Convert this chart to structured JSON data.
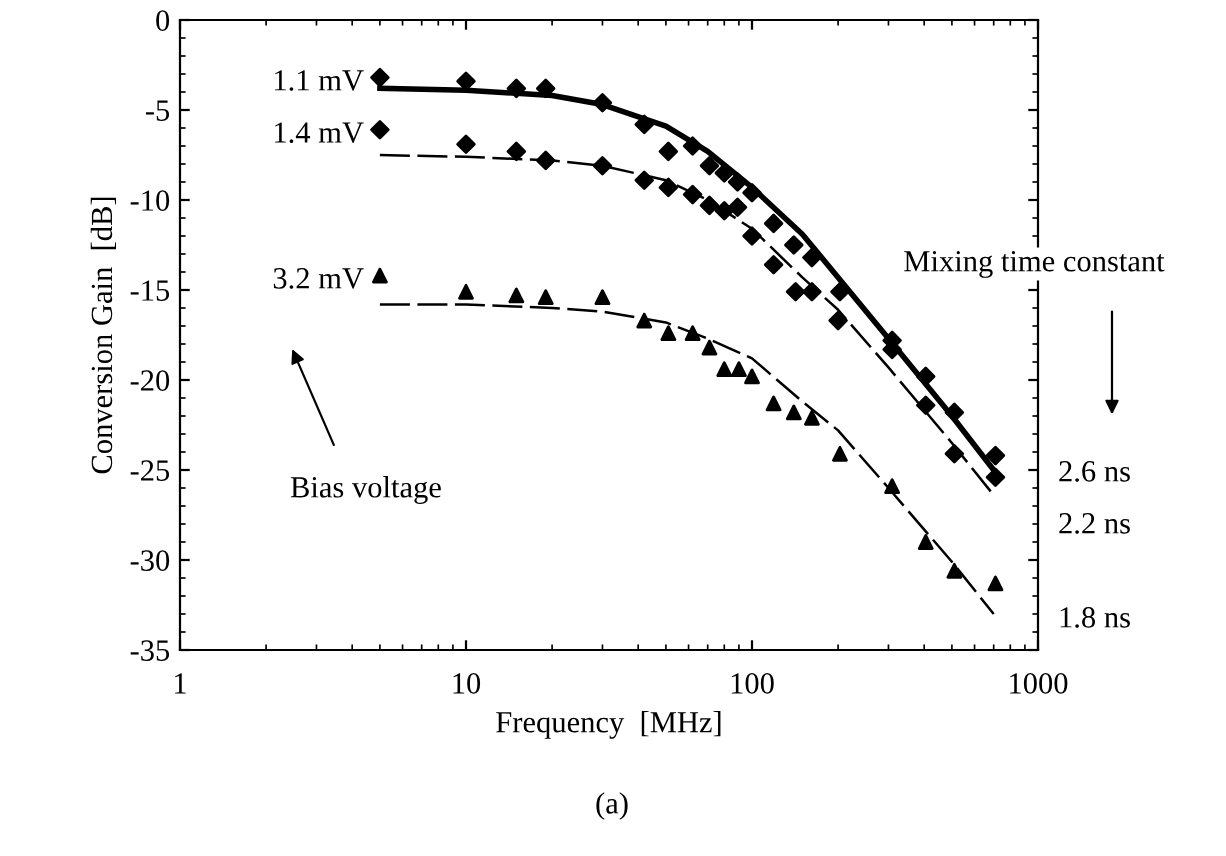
{
  "chart_data": {
    "type": "scatter",
    "xlabel": "Frequency  [MHz]",
    "ylabel": "Conversion Gain  [dB]",
    "log": "x",
    "xlim": [
      1,
      1000
    ],
    "xticks": [
      1,
      10,
      100,
      1000
    ],
    "ylim": [
      -35,
      0
    ],
    "yticks": [
      -35,
      -30,
      -25,
      -20,
      -15,
      -10,
      -5,
      0
    ],
    "grid": false,
    "legend": false,
    "series": [
      {
        "name": "1.1 mV",
        "marker": "diamond",
        "color": "#000000",
        "x": [
          5,
          10,
          15,
          19,
          30,
          42,
          51,
          62,
          71,
          80,
          89,
          100,
          119,
          140,
          162,
          203,
          309,
          405,
          510,
          710
        ],
        "values": [
          -3.2,
          -3.4,
          -3.8,
          -3.8,
          -4.6,
          -5.8,
          -7.3,
          -7.0,
          -8.1,
          -8.5,
          -9.0,
          -9.6,
          -11.3,
          -12.5,
          -13.2,
          -15.1,
          -17.8,
          -19.8,
          -21.8,
          -24.2
        ]
      },
      {
        "name": "1.4 mV",
        "marker": "diamond",
        "color": "#000000",
        "x": [
          5,
          10,
          15,
          19,
          30,
          42,
          51,
          62,
          71,
          80,
          89,
          100,
          119,
          142,
          162,
          200,
          309,
          405,
          510,
          710
        ],
        "values": [
          -6.1,
          -6.9,
          -7.3,
          -7.8,
          -8.1,
          -8.9,
          -9.3,
          -9.7,
          -10.3,
          -10.6,
          -10.4,
          -12.0,
          -13.6,
          -15.1,
          -15.1,
          -16.7,
          -18.3,
          -21.4,
          -24.1,
          -25.4
        ]
      },
      {
        "name": "3.2 mV",
        "marker": "triangle",
        "color": "#000000",
        "x": [
          5,
          10,
          15,
          19,
          30,
          42,
          51,
          62,
          71,
          80,
          90,
          100,
          119,
          140,
          162,
          203,
          309,
          405,
          510,
          710
        ],
        "values": [
          -14.2,
          -15.1,
          -15.3,
          -15.4,
          -15.4,
          -16.7,
          -17.4,
          -17.4,
          -18.2,
          -19.4,
          -19.4,
          -19.8,
          -21.3,
          -21.8,
          -22.1,
          -24.1,
          -25.9,
          -29.0,
          -30.6,
          -31.3
        ]
      },
      {
        "type": "line",
        "line_style": "solid",
        "color": "#000000",
        "x": [
          5,
          10,
          20,
          30,
          50,
          70,
          100,
          150,
          200,
          300,
          500,
          700
        ],
        "values": [
          -3.8,
          -3.9,
          -4.2,
          -4.7,
          -5.9,
          -7.3,
          -9.3,
          -11.9,
          -14.3,
          -17.7,
          -22.0,
          -25.0
        ]
      },
      {
        "type": "line",
        "line_style": "dashed",
        "color": "#000000",
        "x": [
          5,
          10,
          20,
          30,
          50,
          70,
          100,
          150,
          200,
          300,
          500,
          700
        ],
        "values": [
          -7.5,
          -7.6,
          -7.8,
          -8.1,
          -8.9,
          -10.0,
          -11.6,
          -14.3,
          -16.1,
          -19.3,
          -23.5,
          -26.4
        ]
      },
      {
        "type": "line",
        "line_style": "dashed",
        "color": "#000000",
        "x": [
          5,
          10,
          20,
          30,
          50,
          70,
          100,
          150,
          200,
          300,
          500,
          700
        ],
        "values": [
          -15.8,
          -15.8,
          -16.0,
          -16.2,
          -16.8,
          -17.7,
          -18.8,
          -21.2,
          -22.8,
          -26.0,
          -30.1,
          -33.0
        ]
      }
    ],
    "annotations": [
      "Bias voltage",
      "Mixing time constant",
      "2.6 ns",
      "2.2 ns",
      "1.8 ns",
      "(a)"
    ]
  }
}
